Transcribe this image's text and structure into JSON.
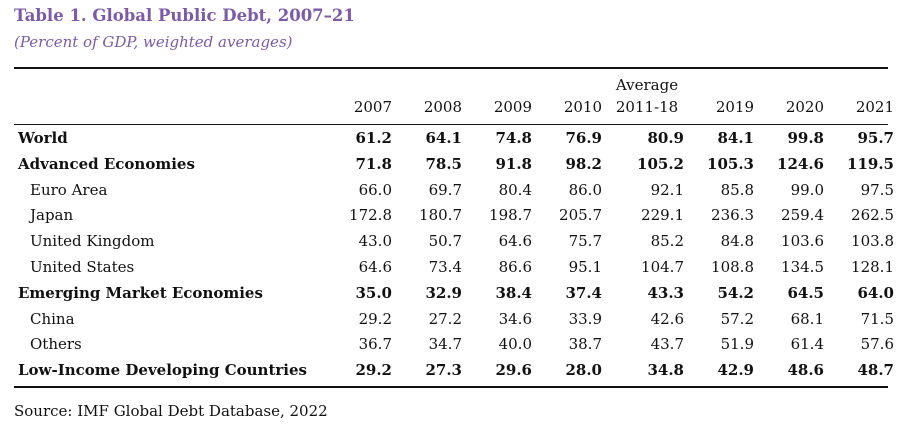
{
  "title": "Table 1. Global Public Debt, 2007–21",
  "subtitle": "(Percent of GDP, weighted averages)",
  "columns": [
    "2007",
    "2008",
    "2009",
    "2010",
    "Average\n2011-18",
    "2019",
    "2020",
    "2021"
  ],
  "avg_header": {
    "line1": "Average",
    "line2": "2011-18"
  },
  "rows": [
    {
      "label": "World",
      "bold": true,
      "values": [
        "61.2",
        "64.1",
        "74.8",
        "76.9",
        "80.9",
        "84.1",
        "99.8",
        "95.7"
      ]
    },
    {
      "label": "Advanced Economies",
      "bold": true,
      "values": [
        "71.8",
        "78.5",
        "91.8",
        "98.2",
        "105.2",
        "105.3",
        "124.6",
        "119.5"
      ]
    },
    {
      "label": "Euro Area",
      "bold": false,
      "values": [
        "66.0",
        "69.7",
        "80.4",
        "86.0",
        "92.1",
        "85.8",
        "99.0",
        "97.5"
      ]
    },
    {
      "label": "Japan",
      "bold": false,
      "values": [
        "172.8",
        "180.7",
        "198.7",
        "205.7",
        "229.1",
        "236.3",
        "259.4",
        "262.5"
      ]
    },
    {
      "label": "United Kingdom",
      "bold": false,
      "values": [
        "43.0",
        "50.7",
        "64.6",
        "75.7",
        "85.2",
        "84.8",
        "103.6",
        "103.8"
      ]
    },
    {
      "label": "United States",
      "bold": false,
      "values": [
        "64.6",
        "73.4",
        "86.6",
        "95.1",
        "104.7",
        "108.8",
        "134.5",
        "128.1"
      ]
    },
    {
      "label": "Emerging Market Economies",
      "bold": true,
      "values": [
        "35.0",
        "32.9",
        "38.4",
        "37.4",
        "43.3",
        "54.2",
        "64.5",
        "64.0"
      ]
    },
    {
      "label": "China",
      "bold": false,
      "values": [
        "29.2",
        "27.2",
        "34.6",
        "33.9",
        "42.6",
        "57.2",
        "68.1",
        "71.5"
      ]
    },
    {
      "label": "Others",
      "bold": false,
      "values": [
        "36.7",
        "34.7",
        "40.0",
        "38.7",
        "43.7",
        "51.9",
        "61.4",
        "57.6"
      ]
    },
    {
      "label": "Low-Income Developing Countries",
      "bold": true,
      "values": [
        "29.2",
        "27.3",
        "29.6",
        "28.0",
        "34.8",
        "42.9",
        "48.6",
        "48.7"
      ]
    }
  ],
  "source": "Source: IMF Global Debt Database, 2022",
  "colors": {
    "title": "#7b5aa6",
    "text": "#111111",
    "rule": "#111111"
  }
}
